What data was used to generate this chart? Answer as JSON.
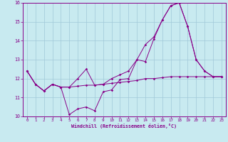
{
  "background_color": "#c8eaf0",
  "grid_color": "#a0c8d8",
  "line_color": "#880088",
  "x_values": [
    0,
    1,
    2,
    3,
    4,
    5,
    6,
    7,
    8,
    9,
    10,
    11,
    12,
    13,
    14,
    15,
    16,
    17,
    18,
    19,
    20,
    21,
    22,
    23
  ],
  "line1": [
    12.4,
    11.7,
    11.35,
    11.7,
    11.55,
    10.1,
    10.4,
    10.5,
    10.3,
    11.3,
    11.4,
    11.95,
    12.0,
    13.0,
    12.9,
    14.1,
    15.1,
    15.85,
    16.0,
    14.75,
    13.0,
    12.4,
    12.1,
    12.1
  ],
  "line2": [
    12.4,
    11.7,
    11.35,
    11.7,
    11.55,
    11.55,
    11.6,
    11.65,
    11.65,
    11.7,
    11.75,
    11.8,
    11.85,
    11.9,
    12.0,
    12.0,
    12.05,
    12.1,
    12.1,
    12.1,
    12.1,
    12.1,
    12.1,
    12.1
  ],
  "line3": [
    12.4,
    11.7,
    11.35,
    11.7,
    11.55,
    11.55,
    12.0,
    12.5,
    11.65,
    11.7,
    12.0,
    12.2,
    12.4,
    13.0,
    13.8,
    14.2,
    15.1,
    15.85,
    16.0,
    14.75,
    13.0,
    12.4,
    12.1,
    12.1
  ],
  "xlabel": "Windchill (Refroidissement éolien,°C)",
  "ylim": [
    10,
    16
  ],
  "xlim": [
    -0.5,
    23.5
  ],
  "yticks": [
    10,
    11,
    12,
    13,
    14,
    15,
    16
  ],
  "xticks": [
    0,
    1,
    2,
    3,
    4,
    5,
    6,
    7,
    8,
    9,
    10,
    11,
    12,
    13,
    14,
    15,
    16,
    17,
    18,
    19,
    20,
    21,
    22,
    23
  ]
}
